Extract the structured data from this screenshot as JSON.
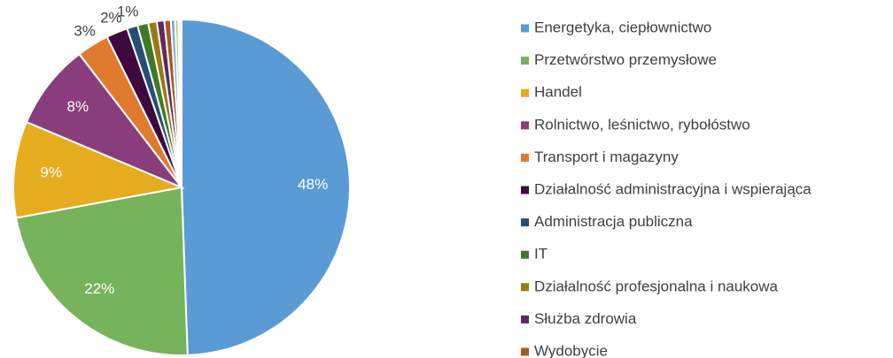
{
  "chart_data": {
    "type": "pie",
    "categories": [
      "Energetyka, ciepłownictwo",
      "Przetwórstwo przemysłowe",
      "Handel",
      "Rolnictwo, leśnictwo, rybołóstwo",
      "Transport i magazyny",
      "Działalność administracyjna i wspierająca",
      "Administracja publiczna",
      "IT",
      "Działalność profesjonalna i naukowa",
      "Służba zdrowia",
      "Wydobycie",
      null,
      null,
      null,
      null
    ],
    "values": [
      48,
      22,
      9,
      8,
      3,
      2,
      1,
      1,
      0.8,
      0.7,
      0.6,
      0.4,
      0.3,
      0.2,
      0.1
    ],
    "value_labels": [
      "48%",
      "22%",
      "9%",
      "8%",
      "3%",
      "2%",
      "1%",
      null,
      null,
      null,
      null,
      null,
      null,
      null,
      null
    ],
    "colors": [
      "#5b9bd5",
      "#77b35a",
      "#e6ac1f",
      "#8a3d7c",
      "#e07a2e",
      "#3e0a3e",
      "#264f78",
      "#3f7a29",
      "#9a7a12",
      "#5e2a5e",
      "#a55a20",
      "#7fa8d8",
      "#a6c98a",
      "#f2c46a",
      "#c08ab8"
    ],
    "legend": "right"
  }
}
